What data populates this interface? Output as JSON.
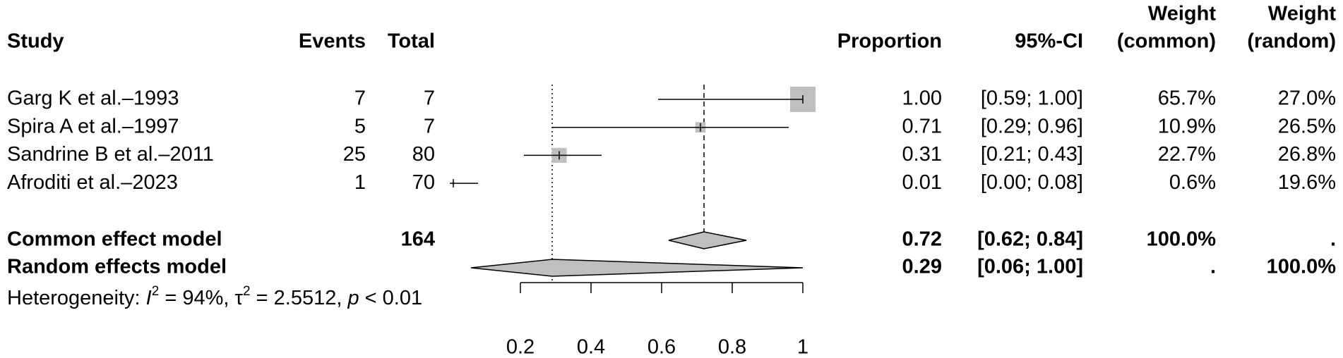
{
  "chart_data": {
    "type": "forest",
    "headers": {
      "study": "Study",
      "events": "Events",
      "total": "Total",
      "proportion": "Proportion",
      "ci": "95%-CI",
      "weight_common": [
        "Weight",
        "(common)"
      ],
      "weight_random": [
        "Weight",
        "(random)"
      ]
    },
    "categories": [
      "Garg K et al.–1993",
      "Spira A et al.–1997",
      "Sandrine B et al.–2011",
      "Afroditi et al.–2023"
    ],
    "events": [
      7,
      5,
      25,
      1
    ],
    "totals": [
      7,
      7,
      80,
      70
    ],
    "values": [
      1.0,
      0.71,
      0.31,
      0.01
    ],
    "value_labels": [
      "1.00",
      "0.71",
      "0.31",
      "0.01"
    ],
    "ci_lower": [
      0.59,
      0.29,
      0.21,
      0.0
    ],
    "ci_upper": [
      1.0,
      0.96,
      0.43,
      0.08
    ],
    "ci_labels": [
      "[0.59; 1.00]",
      "[0.29; 0.96]",
      "[0.21; 0.43]",
      "[0.00; 0.08]"
    ],
    "weight_common": [
      65.7,
      10.9,
      22.7,
      0.6
    ],
    "weight_common_labels": [
      "65.7%",
      "10.9%",
      "22.7%",
      "0.6%"
    ],
    "weight_random_labels": [
      "27.0%",
      "26.5%",
      "26.8%",
      "19.6%"
    ],
    "summaries": [
      {
        "name": "Common effect model",
        "total": 164,
        "value": 0.72,
        "ci_lower": 0.62,
        "ci_upper": 0.84,
        "ci_label": "[0.62; 0.84]",
        "weight_common": "100.0%",
        "weight_random": ".",
        "line": "dashed"
      },
      {
        "name": "Random effects model",
        "value": 0.29,
        "ci_lower": 0.06,
        "ci_upper": 1.0,
        "ci_label": "[0.06; 1.00]",
        "weight_common": ".",
        "weight_random": "100.0%",
        "line": "dotted"
      }
    ],
    "heterogeneity": [
      "Heterogeneity: ",
      "I",
      "2",
      " = 94%, ",
      "τ",
      "2",
      " = 2.5512, ",
      "p",
      " < 0.01"
    ],
    "xlim": [
      0.2,
      1
    ],
    "xticks": [
      0.2,
      0.4,
      0.6,
      0.8,
      1
    ],
    "square_color": "#bfbfbf",
    "diamond_color": "#bfbfbf"
  }
}
